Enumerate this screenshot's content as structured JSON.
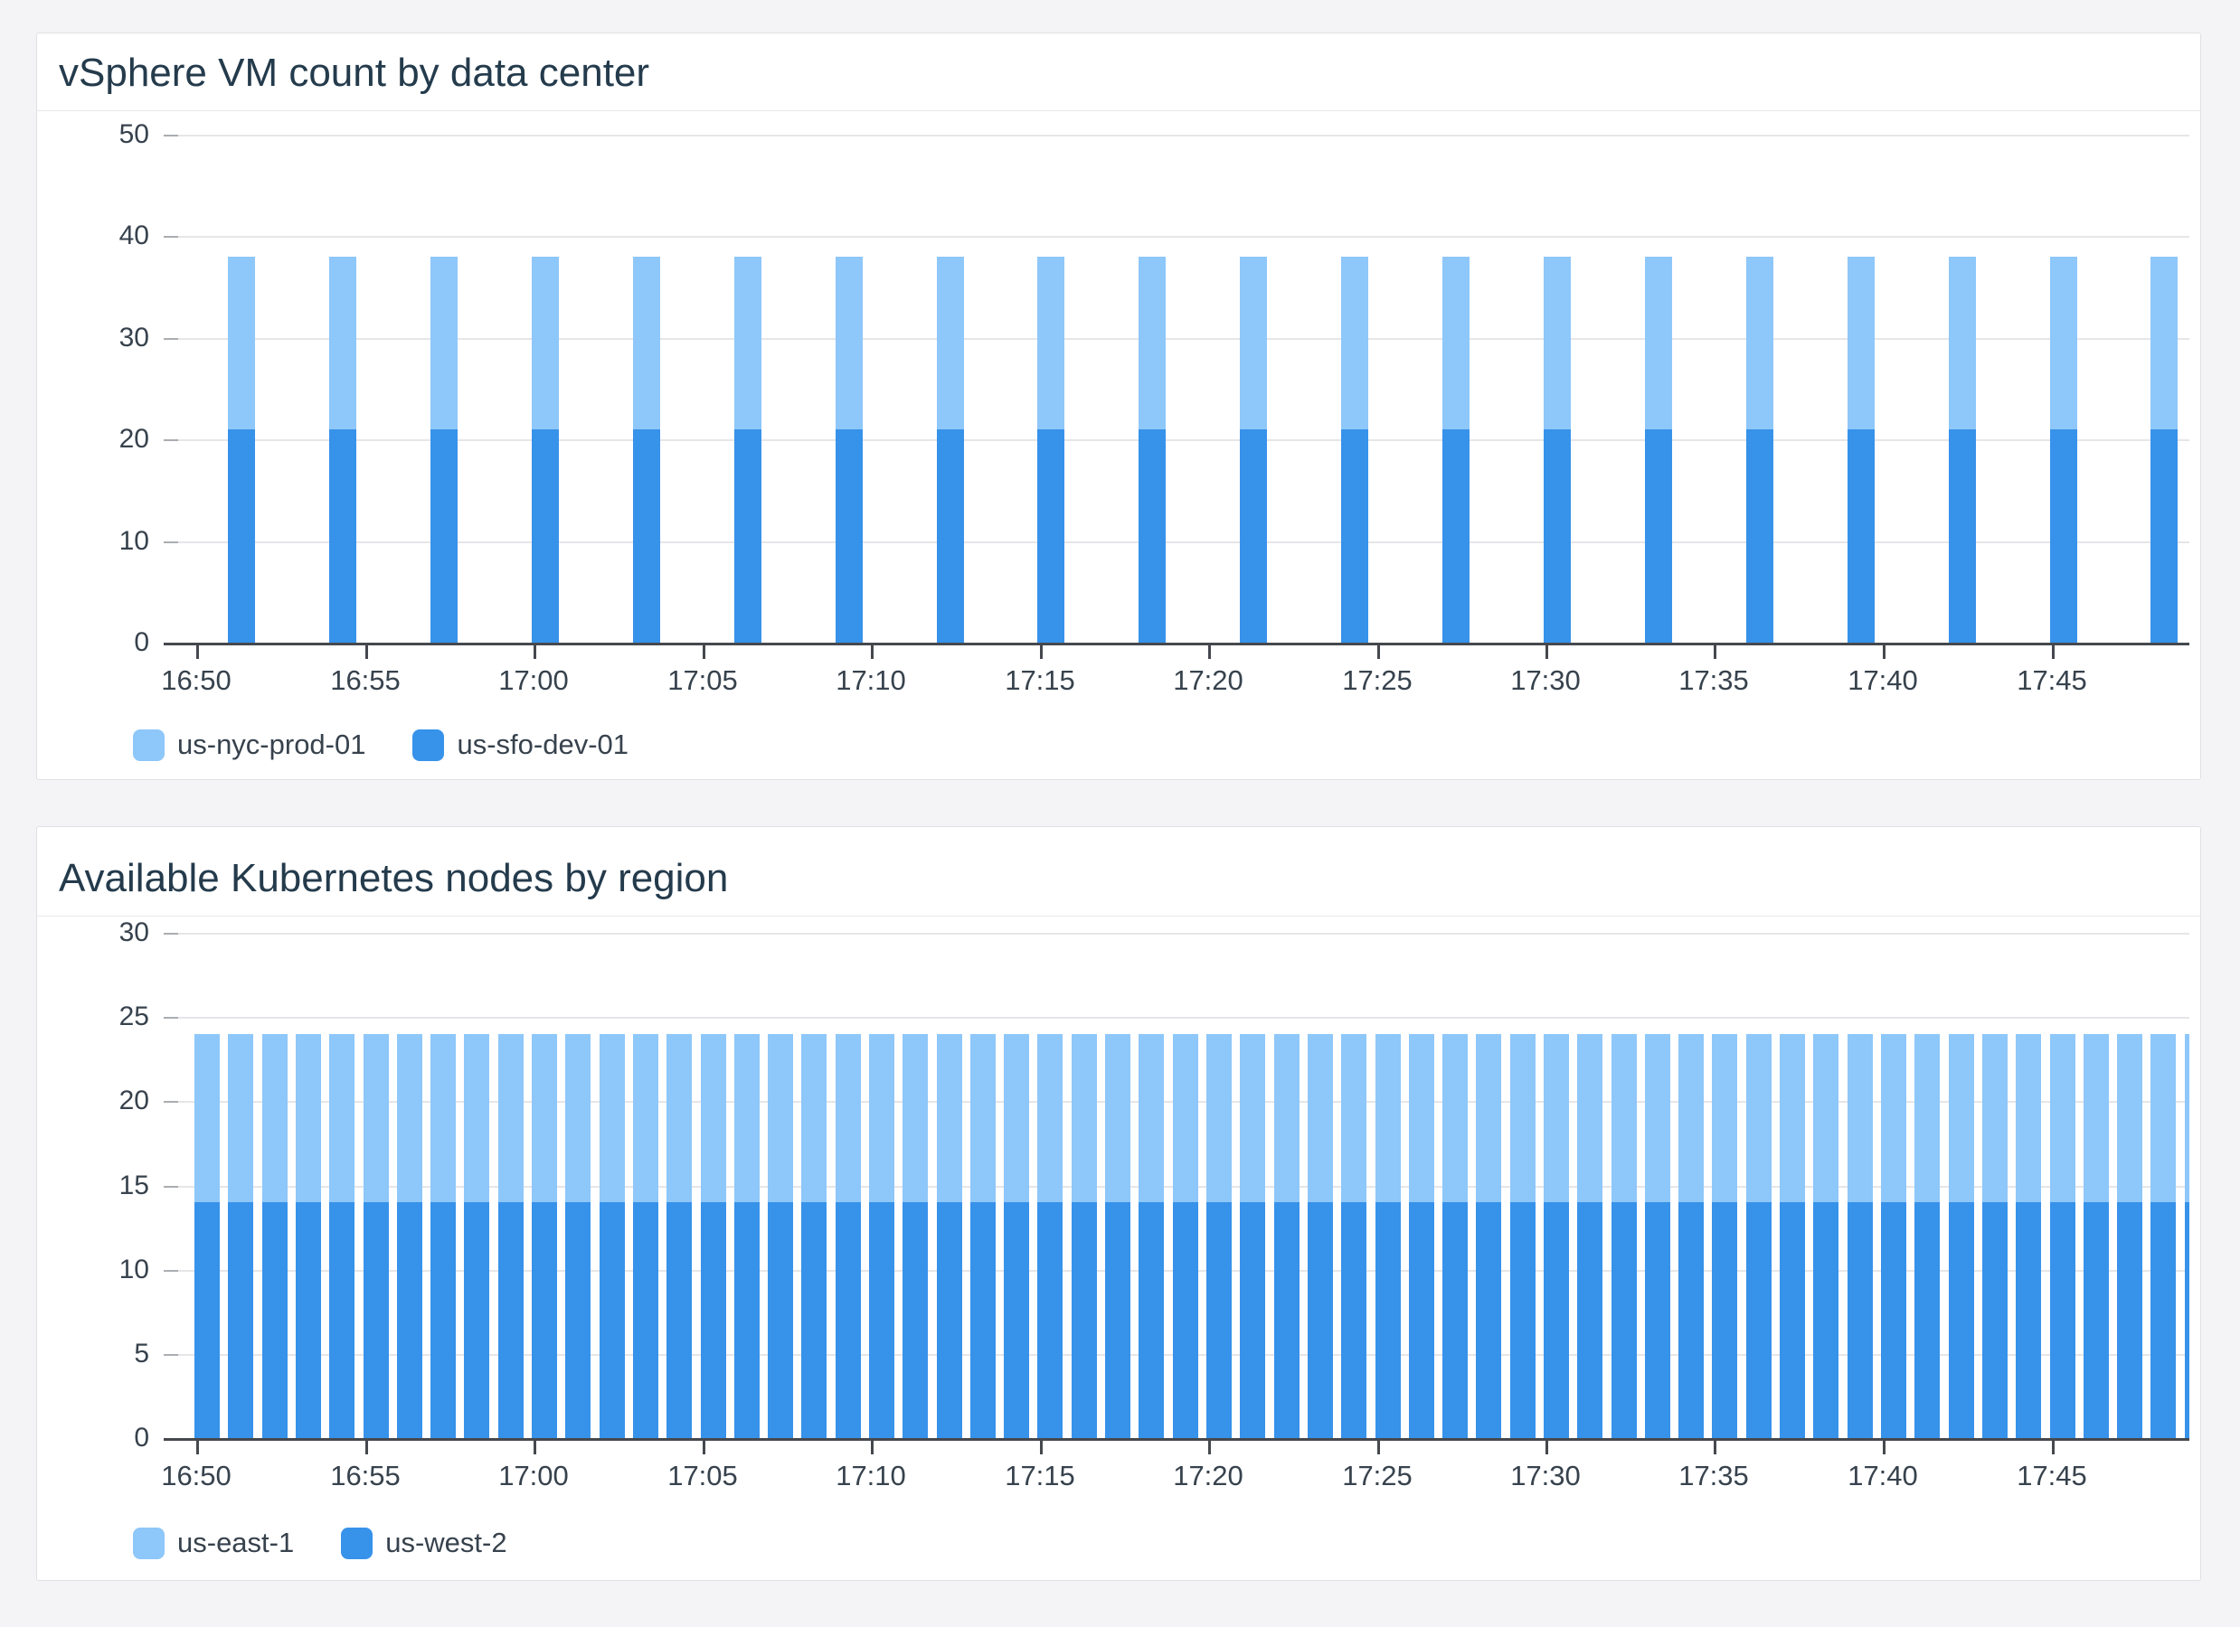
{
  "panels": [
    {
      "title": "vSphere VM count by data center"
    },
    {
      "title": "Available Kubernetes nodes by region"
    }
  ],
  "colors": {
    "series_light_blue": "#8ec7f9",
    "series_dark_blue": "#3792ea",
    "title_text": "#243b4c",
    "axis_text": "#37424d",
    "gridline": "#e6e6e9",
    "card_background": "#ffffff",
    "page_background": "#f4f4f6"
  },
  "chart_data": [
    {
      "type": "bar",
      "stacked": true,
      "title": "vSphere VM count by data center",
      "xlabel": "",
      "ylabel": "",
      "ylim": [
        0,
        50
      ],
      "yticks": [
        0,
        10,
        20,
        30,
        40,
        50
      ],
      "grid": true,
      "legend_position": "bottom",
      "x_start": "16:50",
      "bar_interval_minutes": 3,
      "x": [
        "16:51",
        "16:54",
        "16:57",
        "17:00",
        "17:03",
        "17:06",
        "17:09",
        "17:12",
        "17:15",
        "17:18",
        "17:21",
        "17:24",
        "17:27",
        "17:30",
        "17:33",
        "17:36",
        "17:39",
        "17:42",
        "17:45",
        "17:48"
      ],
      "x_tick_labels": [
        "16:50",
        "16:55",
        "17:00",
        "17:05",
        "17:10",
        "17:15",
        "17:20",
        "17:25",
        "17:30",
        "17:35",
        "17:40",
        "17:45"
      ],
      "series": [
        {
          "name": "us-sfo-dev-01",
          "color": "#3792ea",
          "stack_order": "bottom",
          "values": [
            21,
            21,
            21,
            21,
            21,
            21,
            21,
            21,
            21,
            21,
            21,
            21,
            21,
            21,
            21,
            21,
            21,
            21,
            21,
            21
          ]
        },
        {
          "name": "us-nyc-prod-01",
          "color": "#8ec7f9",
          "stack_order": "top",
          "values": [
            17,
            17,
            17,
            17,
            17,
            17,
            17,
            17,
            17,
            17,
            17,
            17,
            17,
            17,
            17,
            17,
            17,
            17,
            17,
            17
          ]
        }
      ],
      "stacked_total": 38,
      "legend_order": [
        "us-nyc-prod-01",
        "us-sfo-dev-01"
      ]
    },
    {
      "type": "bar",
      "stacked": true,
      "title": "Available Kubernetes nodes by region",
      "xlabel": "",
      "ylabel": "",
      "ylim": [
        0,
        30
      ],
      "yticks": [
        0,
        5,
        10,
        15,
        20,
        25,
        30
      ],
      "grid": true,
      "legend_position": "bottom",
      "x_start": "16:50",
      "bar_interval_minutes": 1,
      "x": [
        "16:50",
        "16:51",
        "16:52",
        "16:53",
        "16:54",
        "16:55",
        "16:56",
        "16:57",
        "16:58",
        "16:59",
        "17:00",
        "17:01",
        "17:02",
        "17:03",
        "17:04",
        "17:05",
        "17:06",
        "17:07",
        "17:08",
        "17:09",
        "17:10",
        "17:11",
        "17:12",
        "17:13",
        "17:14",
        "17:15",
        "17:16",
        "17:17",
        "17:18",
        "17:19",
        "17:20",
        "17:21",
        "17:22",
        "17:23",
        "17:24",
        "17:25",
        "17:26",
        "17:27",
        "17:28",
        "17:29",
        "17:30",
        "17:31",
        "17:32",
        "17:33",
        "17:34",
        "17:35",
        "17:36",
        "17:37",
        "17:38",
        "17:39",
        "17:40",
        "17:41",
        "17:42",
        "17:43",
        "17:44",
        "17:45",
        "17:46",
        "17:47",
        "17:48",
        "17:49"
      ],
      "x_tick_labels": [
        "16:50",
        "16:55",
        "17:00",
        "17:05",
        "17:10",
        "17:15",
        "17:20",
        "17:25",
        "17:30",
        "17:35",
        "17:40",
        "17:45"
      ],
      "series": [
        {
          "name": "us-west-2",
          "color": "#3792ea",
          "stack_order": "bottom",
          "values": [
            14,
            14,
            14,
            14,
            14,
            14,
            14,
            14,
            14,
            14,
            14,
            14,
            14,
            14,
            14,
            14,
            14,
            14,
            14,
            14,
            14,
            14,
            14,
            14,
            14,
            14,
            14,
            14,
            14,
            14,
            14,
            14,
            14,
            14,
            14,
            14,
            14,
            14,
            14,
            14,
            14,
            14,
            14,
            14,
            14,
            14,
            14,
            14,
            14,
            14,
            14,
            14,
            14,
            14,
            14,
            14,
            14,
            14,
            14,
            14
          ]
        },
        {
          "name": "us-east-1",
          "color": "#8ec7f9",
          "stack_order": "top",
          "values": [
            10,
            10,
            10,
            10,
            10,
            10,
            10,
            10,
            10,
            10,
            10,
            10,
            10,
            10,
            10,
            10,
            10,
            10,
            10,
            10,
            10,
            10,
            10,
            10,
            10,
            10,
            10,
            10,
            10,
            10,
            10,
            10,
            10,
            10,
            10,
            10,
            10,
            10,
            10,
            10,
            10,
            10,
            10,
            10,
            10,
            10,
            10,
            10,
            10,
            10,
            10,
            10,
            10,
            10,
            10,
            10,
            10,
            10,
            10,
            10
          ]
        }
      ],
      "stacked_total": 24,
      "legend_order": [
        "us-east-1",
        "us-west-2"
      ]
    }
  ]
}
